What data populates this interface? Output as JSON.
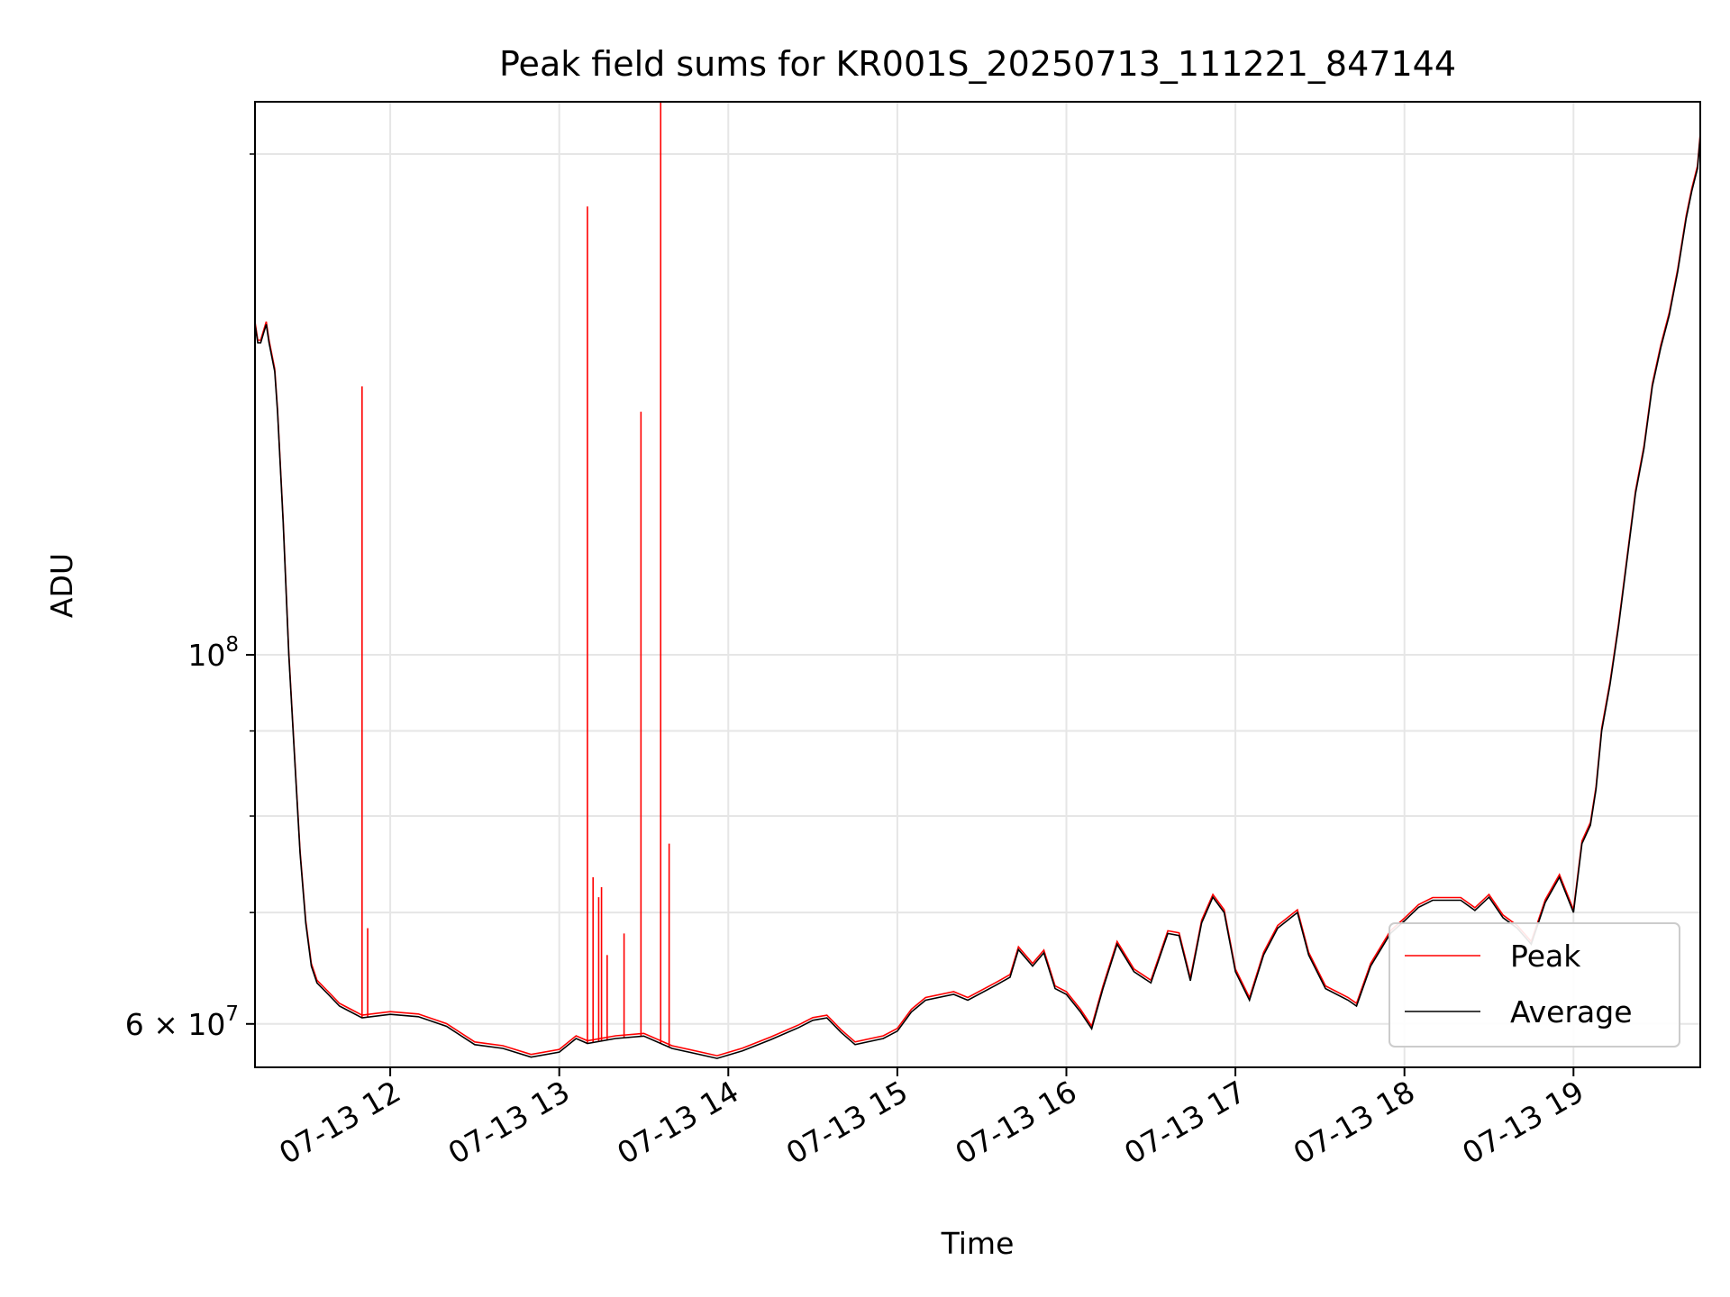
{
  "chart_data": {
    "type": "line",
    "title": "Peak field sums for KR001S_20250713_111221_847144",
    "xlabel": "Time",
    "ylabel": "ADU",
    "y_scale": "log",
    "grid": true,
    "legend_position": "lower-right",
    "xlim": [
      "2025-07-13 11:12",
      "2025-07-13 19:45"
    ],
    "ylim": [
      56500000,
      215000000
    ],
    "x_ticks": [
      "07-13 12",
      "07-13 13",
      "07-13 14",
      "07-13 15",
      "07-13 16",
      "07-13 17",
      "07-13 18",
      "07-13 19"
    ],
    "x_tick_times": [
      "2025-07-13 12:00",
      "2025-07-13 13:00",
      "2025-07-13 14:00",
      "2025-07-13 15:00",
      "2025-07-13 16:00",
      "2025-07-13 17:00",
      "2025-07-13 18:00",
      "2025-07-13 19:00"
    ],
    "y_tick_major": [
      {
        "value": 60000000,
        "mantissa": "6",
        "base": "10",
        "exp": "7",
        "times": "×"
      },
      {
        "value": 100000000,
        "mantissa": "",
        "base": "10",
        "exp": "8",
        "times": ""
      }
    ],
    "y_tick_minor": [
      70000000,
      80000000,
      90000000,
      200000000
    ],
    "series": [
      {
        "name": "Peak",
        "color": "#ff0000",
        "note_spikes": true,
        "spikes": [
          {
            "time": "2025-07-13 11:50",
            "value": 145000000
          },
          {
            "time": "2025-07-13 11:52",
            "value": 68500000
          },
          {
            "time": "2025-07-13 13:10",
            "value": 186000000
          },
          {
            "time": "2025-07-13 13:12",
            "value": 73500000
          },
          {
            "time": "2025-07-13 13:14",
            "value": 71500000
          },
          {
            "time": "2025-07-13 13:15",
            "value": 72500000
          },
          {
            "time": "2025-07-13 13:17",
            "value": 66000000
          },
          {
            "time": "2025-07-13 13:23",
            "value": 68000000
          },
          {
            "time": "2025-07-13 13:29",
            "value": 140000000
          },
          {
            "time": "2025-07-13 13:36",
            "value": 215000000
          },
          {
            "time": "2025-07-13 13:39",
            "value": 77000000
          }
        ]
      },
      {
        "name": "Average",
        "color": "#000000",
        "points": [
          [
            "2025-07-13 11:12",
            158000000
          ],
          [
            "2025-07-13 11:13",
            154000000
          ],
          [
            "2025-07-13 11:14",
            154000000
          ],
          [
            "2025-07-13 11:15",
            156000000
          ],
          [
            "2025-07-13 11:16",
            158000000
          ],
          [
            "2025-07-13 11:17",
            154000000
          ],
          [
            "2025-07-13 11:19",
            148000000
          ],
          [
            "2025-07-13 11:20",
            140000000
          ],
          [
            "2025-07-13 11:22",
            120000000
          ],
          [
            "2025-07-13 11:24",
            100000000
          ],
          [
            "2025-07-13 11:26",
            87000000
          ],
          [
            "2025-07-13 11:28",
            76000000
          ],
          [
            "2025-07-13 11:30",
            69000000
          ],
          [
            "2025-07-13 11:32",
            65000000
          ],
          [
            "2025-07-13 11:34",
            63500000
          ],
          [
            "2025-07-13 11:38",
            62500000
          ],
          [
            "2025-07-13 11:42",
            61500000
          ],
          [
            "2025-07-13 11:46",
            61000000
          ],
          [
            "2025-07-13 11:50",
            60500000
          ],
          [
            "2025-07-13 12:00",
            60800000
          ],
          [
            "2025-07-13 12:10",
            60600000
          ],
          [
            "2025-07-13 12:20",
            59800000
          ],
          [
            "2025-07-13 12:30",
            58300000
          ],
          [
            "2025-07-13 12:40",
            58000000
          ],
          [
            "2025-07-13 12:50",
            57300000
          ],
          [
            "2025-07-13 13:00",
            57700000
          ],
          [
            "2025-07-13 13:06",
            58800000
          ],
          [
            "2025-07-13 13:10",
            58400000
          ],
          [
            "2025-07-13 13:20",
            58800000
          ],
          [
            "2025-07-13 13:30",
            59000000
          ],
          [
            "2025-07-13 13:40",
            58000000
          ],
          [
            "2025-07-13 13:50",
            57500000
          ],
          [
            "2025-07-13 13:56",
            57200000
          ],
          [
            "2025-07-13 14:05",
            57800000
          ],
          [
            "2025-07-13 14:15",
            58700000
          ],
          [
            "2025-07-13 14:25",
            59700000
          ],
          [
            "2025-07-13 14:30",
            60300000
          ],
          [
            "2025-07-13 14:35",
            60500000
          ],
          [
            "2025-07-13 14:40",
            59300000
          ],
          [
            "2025-07-13 14:45",
            58300000
          ],
          [
            "2025-07-13 14:55",
            58800000
          ],
          [
            "2025-07-13 15:00",
            59400000
          ],
          [
            "2025-07-13 15:05",
            61000000
          ],
          [
            "2025-07-13 15:10",
            62000000
          ],
          [
            "2025-07-13 15:20",
            62500000
          ],
          [
            "2025-07-13 15:25",
            62000000
          ],
          [
            "2025-07-13 15:35",
            63300000
          ],
          [
            "2025-07-13 15:40",
            64000000
          ],
          [
            "2025-07-13 15:43",
            66500000
          ],
          [
            "2025-07-13 15:48",
            65000000
          ],
          [
            "2025-07-13 15:52",
            66200000
          ],
          [
            "2025-07-13 15:56",
            63000000
          ],
          [
            "2025-07-13 16:00",
            62500000
          ],
          [
            "2025-07-13 16:05",
            61000000
          ],
          [
            "2025-07-13 16:09",
            59600000
          ],
          [
            "2025-07-13 16:13",
            63000000
          ],
          [
            "2025-07-13 16:18",
            67000000
          ],
          [
            "2025-07-13 16:24",
            64500000
          ],
          [
            "2025-07-13 16:30",
            63500000
          ],
          [
            "2025-07-13 16:36",
            68000000
          ],
          [
            "2025-07-13 16:40",
            67800000
          ],
          [
            "2025-07-13 16:44",
            63700000
          ],
          [
            "2025-07-13 16:48",
            69000000
          ],
          [
            "2025-07-13 16:52",
            71500000
          ],
          [
            "2025-07-13 16:56",
            70000000
          ],
          [
            "2025-07-13 17:00",
            64500000
          ],
          [
            "2025-07-13 17:05",
            62000000
          ],
          [
            "2025-07-13 17:10",
            66000000
          ],
          [
            "2025-07-13 17:15",
            68500000
          ],
          [
            "2025-07-13 17:22",
            70000000
          ],
          [
            "2025-07-13 17:26",
            66000000
          ],
          [
            "2025-07-13 17:32",
            63000000
          ],
          [
            "2025-07-13 17:40",
            62000000
          ],
          [
            "2025-07-13 17:43",
            61500000
          ],
          [
            "2025-07-13 17:48",
            65000000
          ],
          [
            "2025-07-13 17:55",
            68000000
          ],
          [
            "2025-07-13 18:00",
            69200000
          ],
          [
            "2025-07-13 18:05",
            70500000
          ],
          [
            "2025-07-13 18:10",
            71200000
          ],
          [
            "2025-07-13 18:20",
            71200000
          ],
          [
            "2025-07-13 18:25",
            70200000
          ],
          [
            "2025-07-13 18:30",
            71500000
          ],
          [
            "2025-07-13 18:35",
            69500000
          ],
          [
            "2025-07-13 18:40",
            68500000
          ],
          [
            "2025-07-13 18:45",
            67000000
          ],
          [
            "2025-07-13 18:50",
            71000000
          ],
          [
            "2025-07-13 18:55",
            73500000
          ],
          [
            "2025-07-13 19:00",
            70000000
          ],
          [
            "2025-07-13 19:03",
            77000000
          ],
          [
            "2025-07-13 19:06",
            79000000
          ],
          [
            "2025-07-13 19:08",
            83000000
          ],
          [
            "2025-07-13 19:10",
            90000000
          ],
          [
            "2025-07-13 19:13",
            96000000
          ],
          [
            "2025-07-13 19:16",
            104000000
          ],
          [
            "2025-07-13 19:19",
            114000000
          ],
          [
            "2025-07-13 19:22",
            125000000
          ],
          [
            "2025-07-13 19:25",
            133000000
          ],
          [
            "2025-07-13 19:28",
            145000000
          ],
          [
            "2025-07-13 19:31",
            153000000
          ],
          [
            "2025-07-13 19:34",
            160000000
          ],
          [
            "2025-07-13 19:37",
            170000000
          ],
          [
            "2025-07-13 19:40",
            183000000
          ],
          [
            "2025-07-13 19:42",
            190000000
          ],
          [
            "2025-07-13 19:44",
            196000000
          ],
          [
            "2025-07-13 19:45",
            205000000
          ]
        ]
      }
    ]
  }
}
